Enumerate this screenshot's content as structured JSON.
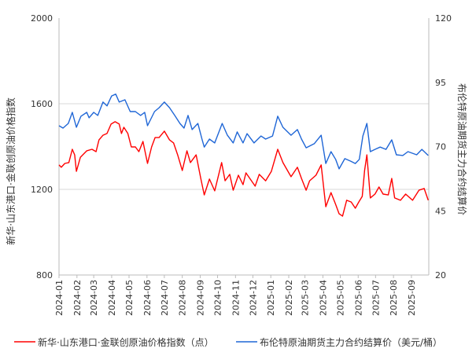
{
  "chart_data": {
    "type": "line",
    "title": "",
    "ylabel_left": "新华·山东港口·金联创原油价格指数",
    "ylabel_right": "布伦特原油期货主力合约结算价",
    "xlim": [
      "2024-01-01",
      "2025-10-01"
    ],
    "ylim_left": [
      800,
      2000
    ],
    "ylim_right": [
      20,
      120
    ],
    "yticks_left": [
      "800",
      "1200",
      "1600",
      "2000"
    ],
    "yticks_right": [
      "20",
      "45",
      "70",
      "95",
      "120"
    ],
    "xticks": [
      "2024-01",
      "2024-02",
      "2024-03",
      "2024-04",
      "2024-05",
      "2024-06",
      "2024-07",
      "2024-08",
      "2024-09",
      "2024-10",
      "2024-11",
      "2024-12",
      "2025-01",
      "2025-02",
      "2025-03",
      "2025-04",
      "2025-05",
      "2025-06",
      "2025-07",
      "2025-08",
      "2025-09"
    ],
    "grid": true,
    "legend_position": "bottom",
    "series": [
      {
        "name": "新华·山东港口·金联创原油价格指数（点）",
        "axis": "left",
        "color": "#ff0000",
        "points": [
          [
            "2024-01-01",
            1314
          ],
          [
            "2024-01-05",
            1303
          ],
          [
            "2024-01-11",
            1321
          ],
          [
            "2024-01-18",
            1325
          ],
          [
            "2024-01-24",
            1387
          ],
          [
            "2024-01-28",
            1361
          ],
          [
            "2024-01-31",
            1284
          ],
          [
            "2024-02-07",
            1350
          ],
          [
            "2024-02-18",
            1380
          ],
          [
            "2024-02-27",
            1387
          ],
          [
            "2024-03-05",
            1376
          ],
          [
            "2024-03-10",
            1431
          ],
          [
            "2024-03-17",
            1453
          ],
          [
            "2024-03-24",
            1461
          ],
          [
            "2024-03-31",
            1505
          ],
          [
            "2024-04-07",
            1516
          ],
          [
            "2024-04-14",
            1505
          ],
          [
            "2024-04-18",
            1461
          ],
          [
            "2024-04-22",
            1490
          ],
          [
            "2024-04-29",
            1461
          ],
          [
            "2024-05-05",
            1398
          ],
          [
            "2024-05-12",
            1398
          ],
          [
            "2024-05-18",
            1376
          ],
          [
            "2024-05-25",
            1424
          ],
          [
            "2024-06-02",
            1321
          ],
          [
            "2024-06-09",
            1398
          ],
          [
            "2024-06-15",
            1442
          ],
          [
            "2024-06-22",
            1442
          ],
          [
            "2024-07-01",
            1472
          ],
          [
            "2024-07-10",
            1431
          ],
          [
            "2024-07-17",
            1417
          ],
          [
            "2024-07-24",
            1361
          ],
          [
            "2024-08-01",
            1288
          ],
          [
            "2024-08-09",
            1380
          ],
          [
            "2024-08-15",
            1325
          ],
          [
            "2024-08-25",
            1361
          ],
          [
            "2024-09-02",
            1251
          ],
          [
            "2024-09-08",
            1174
          ],
          [
            "2024-09-17",
            1248
          ],
          [
            "2024-09-26",
            1193
          ],
          [
            "2024-10-08",
            1325
          ],
          [
            "2024-10-14",
            1240
          ],
          [
            "2024-10-22",
            1270
          ],
          [
            "2024-10-28",
            1196
          ],
          [
            "2024-11-06",
            1266
          ],
          [
            "2024-11-14",
            1222
          ],
          [
            "2024-11-19",
            1277
          ],
          [
            "2024-12-05",
            1215
          ],
          [
            "2024-12-12",
            1270
          ],
          [
            "2024-12-23",
            1240
          ],
          [
            "2025-01-02",
            1284
          ],
          [
            "2025-01-13",
            1387
          ],
          [
            "2025-01-22",
            1325
          ],
          [
            "2025-02-05",
            1259
          ],
          [
            "2025-02-16",
            1303
          ],
          [
            "2025-02-23",
            1251
          ],
          [
            "2025-03-03",
            1196
          ],
          [
            "2025-03-09",
            1240
          ],
          [
            "2025-03-20",
            1266
          ],
          [
            "2025-03-29",
            1314
          ],
          [
            "2025-04-06",
            1119
          ],
          [
            "2025-04-15",
            1185
          ],
          [
            "2025-04-23",
            1130
          ],
          [
            "2025-04-29",
            1086
          ],
          [
            "2025-05-05",
            1075
          ],
          [
            "2025-05-12",
            1149
          ],
          [
            "2025-05-20",
            1141
          ],
          [
            "2025-05-27",
            1112
          ],
          [
            "2025-06-02",
            1141
          ],
          [
            "2025-06-08",
            1167
          ],
          [
            "2025-06-12",
            1288
          ],
          [
            "2025-06-16",
            1361
          ],
          [
            "2025-06-22",
            1160
          ],
          [
            "2025-06-30",
            1178
          ],
          [
            "2025-07-07",
            1211
          ],
          [
            "2025-07-14",
            1178
          ],
          [
            "2025-07-23",
            1174
          ],
          [
            "2025-07-29",
            1251
          ],
          [
            "2025-08-03",
            1160
          ],
          [
            "2025-08-13",
            1149
          ],
          [
            "2025-08-22",
            1178
          ],
          [
            "2025-09-03",
            1149
          ],
          [
            "2025-09-14",
            1196
          ],
          [
            "2025-09-23",
            1204
          ],
          [
            "2025-09-30",
            1149
          ]
        ]
      },
      {
        "name": "布伦特原油期货主力合约结算价（美元/桶）",
        "axis": "right",
        "color": "#1f66d6",
        "points": [
          [
            "2024-01-01",
            78.1
          ],
          [
            "2024-01-08",
            77.2
          ],
          [
            "2024-01-17",
            79.0
          ],
          [
            "2024-01-24",
            83.3
          ],
          [
            "2024-01-31",
            77.5
          ],
          [
            "2024-02-08",
            81.8
          ],
          [
            "2024-02-18",
            83.3
          ],
          [
            "2024-02-22",
            81.2
          ],
          [
            "2024-03-01",
            83.3
          ],
          [
            "2024-03-08",
            82.1
          ],
          [
            "2024-03-17",
            87.3
          ],
          [
            "2024-03-24",
            85.8
          ],
          [
            "2024-04-01",
            89.7
          ],
          [
            "2024-04-08",
            90.4
          ],
          [
            "2024-04-14",
            87.3
          ],
          [
            "2024-04-24",
            88.2
          ],
          [
            "2024-05-03",
            83.6
          ],
          [
            "2024-05-12",
            83.6
          ],
          [
            "2024-05-21",
            82.1
          ],
          [
            "2024-05-28",
            83.3
          ],
          [
            "2024-06-02",
            78.1
          ],
          [
            "2024-06-14",
            83.6
          ],
          [
            "2024-06-22",
            85.1
          ],
          [
            "2024-07-01",
            87.3
          ],
          [
            "2024-07-10",
            85.1
          ],
          [
            "2024-07-19",
            82.1
          ],
          [
            "2024-07-28",
            79.0
          ],
          [
            "2024-08-04",
            77.2
          ],
          [
            "2024-08-11",
            82.1
          ],
          [
            "2024-08-18",
            76.6
          ],
          [
            "2024-08-28",
            79.0
          ],
          [
            "2024-09-04",
            72.9
          ],
          [
            "2024-09-08",
            69.8
          ],
          [
            "2024-09-17",
            72.9
          ],
          [
            "2024-09-26",
            71.4
          ],
          [
            "2024-10-09",
            79.0
          ],
          [
            "2024-10-18",
            74.4
          ],
          [
            "2024-10-28",
            71.4
          ],
          [
            "2024-11-04",
            75.7
          ],
          [
            "2024-11-14",
            71.4
          ],
          [
            "2024-11-21",
            75.0
          ],
          [
            "2024-12-03",
            71.4
          ],
          [
            "2024-12-15",
            74.1
          ],
          [
            "2024-12-23",
            72.9
          ],
          [
            "2025-01-04",
            74.1
          ],
          [
            "2025-01-13",
            81.8
          ],
          [
            "2025-01-22",
            77.5
          ],
          [
            "2025-02-05",
            74.4
          ],
          [
            "2025-02-16",
            76.6
          ],
          [
            "2025-02-23",
            72.9
          ],
          [
            "2025-03-03",
            69.5
          ],
          [
            "2025-03-17",
            71.1
          ],
          [
            "2025-03-29",
            74.4
          ],
          [
            "2025-04-06",
            63.4
          ],
          [
            "2025-04-15",
            68.0
          ],
          [
            "2025-04-23",
            65.0
          ],
          [
            "2025-04-29",
            61.3
          ],
          [
            "2025-05-09",
            65.3
          ],
          [
            "2025-05-19",
            64.3
          ],
          [
            "2025-05-27",
            63.4
          ],
          [
            "2025-06-03",
            65.0
          ],
          [
            "2025-06-09",
            74.1
          ],
          [
            "2025-06-16",
            79.0
          ],
          [
            "2025-06-22",
            68.0
          ],
          [
            "2025-06-30",
            68.9
          ],
          [
            "2025-07-09",
            69.8
          ],
          [
            "2025-07-19",
            68.9
          ],
          [
            "2025-07-29",
            72.6
          ],
          [
            "2025-08-06",
            66.8
          ],
          [
            "2025-08-17",
            66.5
          ],
          [
            "2025-08-26",
            68.0
          ],
          [
            "2025-09-10",
            66.8
          ],
          [
            "2025-09-19",
            68.9
          ],
          [
            "2025-09-30",
            66.5
          ]
        ]
      }
    ]
  }
}
